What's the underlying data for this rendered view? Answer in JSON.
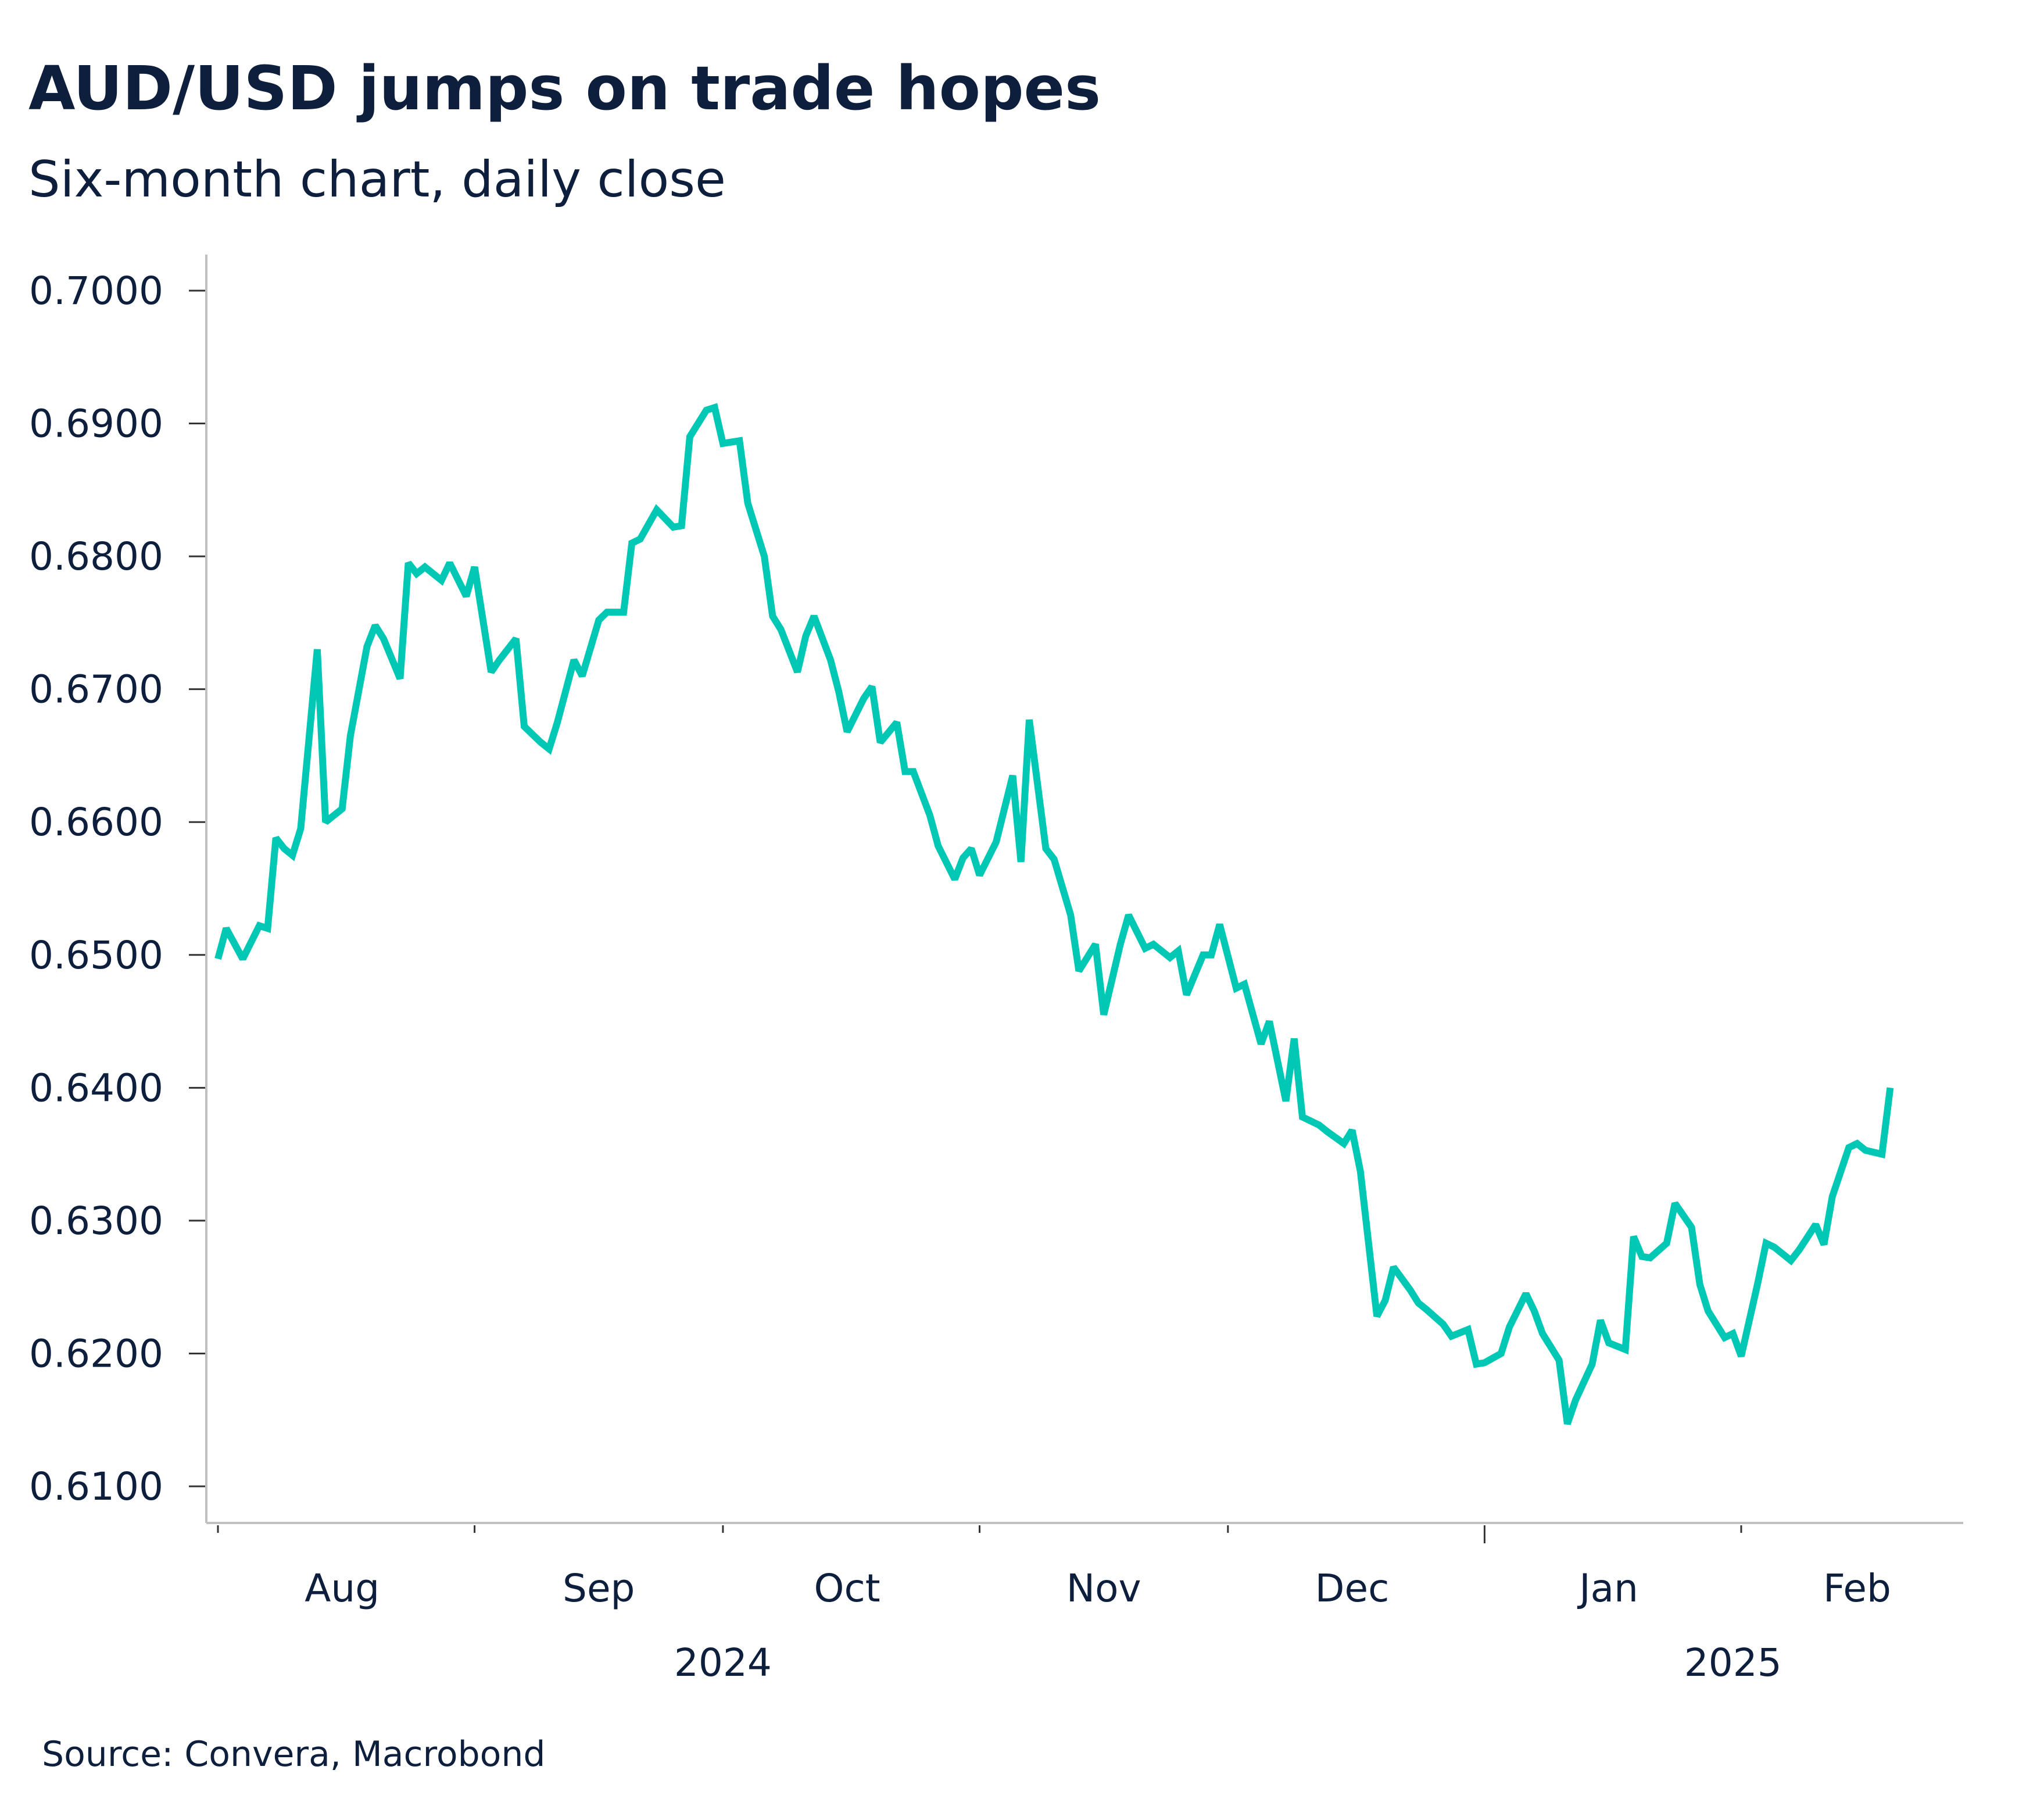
{
  "title": "AUD/USD jumps on trade hopes",
  "subtitle": "Six-month chart, daily close",
  "source": "Source: Convera, Macrobond",
  "colors": {
    "line": "#00c8b4",
    "text": "#0d1f3c",
    "axis": "#c0c0c0"
  },
  "chart_data": {
    "type": "line",
    "title": "AUD/USD jumps on trade hopes",
    "subtitle": "Six-month chart, daily close",
    "ylim": [
      0.61,
      0.7
    ],
    "xlim": [
      "2024-08-01",
      "2025-02-19"
    ],
    "y_ticks": [
      "0.7000",
      "0.6900",
      "0.6800",
      "0.6700",
      "0.6600",
      "0.6500",
      "0.6400",
      "0.6300",
      "0.6200",
      "0.6100"
    ],
    "x_month_labels": [
      {
        "label": "Aug",
        "date": "2024-08-16"
      },
      {
        "label": "Sep",
        "date": "2024-09-16"
      },
      {
        "label": "Oct",
        "date": "2024-10-16"
      },
      {
        "label": "Nov",
        "date": "2024-11-16"
      },
      {
        "label": "Dec",
        "date": "2024-12-16"
      },
      {
        "label": "Jan",
        "date": "2025-01-16"
      },
      {
        "label": "Feb",
        "date": "2025-02-15"
      }
    ],
    "x_month_ticks": [
      "2024-08-01",
      "2024-09-01",
      "2024-10-01",
      "2024-11-01",
      "2024-12-01",
      "2025-01-01",
      "2025-02-01"
    ],
    "x_year_labels": [
      {
        "label": "2024",
        "date": "2024-10-01"
      },
      {
        "label": "2025",
        "date": "2025-01-31"
      }
    ],
    "grid": false,
    "legend": "none",
    "series": [
      {
        "points": [
          [
            "2024-08-01",
            0.6497
          ],
          [
            "2024-08-02",
            0.652
          ],
          [
            "2024-08-04",
            0.6497
          ],
          [
            "2024-08-06",
            0.6522
          ],
          [
            "2024-08-07",
            0.652
          ],
          [
            "2024-08-08",
            0.6588
          ],
          [
            "2024-08-09",
            0.658
          ],
          [
            "2024-08-10",
            0.6575
          ],
          [
            "2024-08-11",
            0.6595
          ],
          [
            "2024-08-13",
            0.673
          ],
          [
            "2024-08-14",
            0.66
          ],
          [
            "2024-08-16",
            0.661
          ],
          [
            "2024-08-17",
            0.6665
          ],
          [
            "2024-08-19",
            0.6732
          ],
          [
            "2024-08-20",
            0.6748
          ],
          [
            "2024-08-21",
            0.6738
          ],
          [
            "2024-08-23",
            0.6708
          ],
          [
            "2024-08-24",
            0.6795
          ],
          [
            "2024-08-25",
            0.6787
          ],
          [
            "2024-08-26",
            0.6792
          ],
          [
            "2024-08-28",
            0.6782
          ],
          [
            "2024-08-29",
            0.6795
          ],
          [
            "2024-08-31",
            0.677
          ],
          [
            "2024-09-01",
            0.6792
          ],
          [
            "2024-09-03",
            0.6713
          ],
          [
            "2024-09-04",
            0.6722
          ],
          [
            "2024-09-06",
            0.6738
          ],
          [
            "2024-09-07",
            0.6672
          ],
          [
            "2024-09-09",
            0.666
          ],
          [
            "2024-09-10",
            0.6655
          ],
          [
            "2024-09-11",
            0.6675
          ],
          [
            "2024-09-13",
            0.6722
          ],
          [
            "2024-09-14",
            0.671
          ],
          [
            "2024-09-16",
            0.6752
          ],
          [
            "2024-09-17",
            0.6758
          ],
          [
            "2024-09-19",
            0.6758
          ],
          [
            "2024-09-20",
            0.681
          ],
          [
            "2024-09-21",
            0.6813
          ],
          [
            "2024-09-23",
            0.6835
          ],
          [
            "2024-09-25",
            0.6822
          ],
          [
            "2024-09-26",
            0.6823
          ],
          [
            "2024-09-27",
            0.689
          ],
          [
            "2024-09-29",
            0.691
          ],
          [
            "2024-09-30",
            0.6912
          ],
          [
            "2024-10-01",
            0.6885
          ],
          [
            "2024-10-03",
            0.6887
          ],
          [
            "2024-10-04",
            0.684
          ],
          [
            "2024-10-06",
            0.68
          ],
          [
            "2024-10-07",
            0.6755
          ],
          [
            "2024-10-08",
            0.6745
          ],
          [
            "2024-10-10",
            0.6713
          ],
          [
            "2024-10-11",
            0.674
          ],
          [
            "2024-10-12",
            0.6755
          ],
          [
            "2024-10-14",
            0.6722
          ],
          [
            "2024-10-15",
            0.6698
          ],
          [
            "2024-10-16",
            0.6668
          ],
          [
            "2024-10-18",
            0.6693
          ],
          [
            "2024-10-19",
            0.6702
          ],
          [
            "2024-10-20",
            0.666
          ],
          [
            "2024-10-22",
            0.6675
          ],
          [
            "2024-10-23",
            0.6638
          ],
          [
            "2024-10-24",
            0.6638
          ],
          [
            "2024-10-26",
            0.6605
          ],
          [
            "2024-10-27",
            0.6582
          ],
          [
            "2024-10-29",
            0.6557
          ],
          [
            "2024-10-30",
            0.6573
          ],
          [
            "2024-10-31",
            0.658
          ],
          [
            "2024-11-01",
            0.656
          ],
          [
            "2024-11-03",
            0.6585
          ],
          [
            "2024-11-05",
            0.6635
          ],
          [
            "2024-11-06",
            0.657
          ],
          [
            "2024-11-07",
            0.6677
          ],
          [
            "2024-11-09",
            0.658
          ],
          [
            "2024-11-10",
            0.6572
          ],
          [
            "2024-11-12",
            0.653
          ],
          [
            "2024-11-13",
            0.6488
          ],
          [
            "2024-11-15",
            0.6508
          ],
          [
            "2024-11-16",
            0.6455
          ],
          [
            "2024-11-18",
            0.6508
          ],
          [
            "2024-11-19",
            0.653
          ],
          [
            "2024-11-21",
            0.6505
          ],
          [
            "2024-11-22",
            0.6508
          ],
          [
            "2024-11-24",
            0.6498
          ],
          [
            "2024-11-25",
            0.6503
          ],
          [
            "2024-11-26",
            0.647
          ],
          [
            "2024-11-28",
            0.65
          ],
          [
            "2024-11-29",
            0.65
          ],
          [
            "2024-11-30",
            0.6523
          ],
          [
            "2024-12-02",
            0.6475
          ],
          [
            "2024-12-03",
            0.6478
          ],
          [
            "2024-12-05",
            0.6433
          ],
          [
            "2024-12-06",
            0.645
          ],
          [
            "2024-12-08",
            0.639
          ],
          [
            "2024-12-09",
            0.6437
          ],
          [
            "2024-12-10",
            0.6378
          ],
          [
            "2024-12-12",
            0.6372
          ],
          [
            "2024-12-13",
            0.6367
          ],
          [
            "2024-12-15",
            0.6358
          ],
          [
            "2024-12-16",
            0.6368
          ],
          [
            "2024-12-17",
            0.6337
          ],
          [
            "2024-12-19",
            0.6228
          ],
          [
            "2024-12-20",
            0.624
          ],
          [
            "2024-12-21",
            0.6265
          ],
          [
            "2024-12-23",
            0.6248
          ],
          [
            "2024-12-24",
            0.6238
          ],
          [
            "2024-12-25",
            0.6233
          ],
          [
            "2024-12-27",
            0.6222
          ],
          [
            "2024-12-28",
            0.6213
          ],
          [
            "2024-12-30",
            0.6218
          ],
          [
            "2024-12-31",
            0.6192
          ],
          [
            "2025-01-01",
            0.6193
          ],
          [
            "2025-01-03",
            0.62
          ],
          [
            "2025-01-04",
            0.622
          ],
          [
            "2025-01-06",
            0.6245
          ],
          [
            "2025-01-07",
            0.6232
          ],
          [
            "2025-01-08",
            0.6215
          ],
          [
            "2025-01-10",
            0.6195
          ],
          [
            "2025-01-11",
            0.6147
          ],
          [
            "2025-01-12",
            0.6165
          ],
          [
            "2025-01-14",
            0.6192
          ],
          [
            "2025-01-15",
            0.6225
          ],
          [
            "2025-01-16",
            0.6208
          ],
          [
            "2025-01-18",
            0.6203
          ],
          [
            "2025-01-19",
            0.6288
          ],
          [
            "2025-01-20",
            0.6273
          ],
          [
            "2025-01-21",
            0.6272
          ],
          [
            "2025-01-23",
            0.6283
          ],
          [
            "2025-01-24",
            0.6313
          ],
          [
            "2025-01-26",
            0.6295
          ],
          [
            "2025-01-27",
            0.6252
          ],
          [
            "2025-01-28",
            0.6232
          ],
          [
            "2025-01-30",
            0.6212
          ],
          [
            "2025-01-31",
            0.6215
          ],
          [
            "2025-02-01",
            0.6198
          ],
          [
            "2025-02-03",
            0.6253
          ],
          [
            "2025-02-04",
            0.6283
          ],
          [
            "2025-02-05",
            0.628
          ],
          [
            "2025-02-07",
            0.627
          ],
          [
            "2025-02-08",
            0.6278
          ],
          [
            "2025-02-10",
            0.6297
          ],
          [
            "2025-02-11",
            0.6282
          ],
          [
            "2025-02-12",
            0.6318
          ],
          [
            "2025-02-14",
            0.6355
          ],
          [
            "2025-02-15",
            0.6358
          ],
          [
            "2025-02-16",
            0.6353
          ],
          [
            "2025-02-18",
            0.635
          ],
          [
            "2025-02-19",
            0.64
          ]
        ]
      }
    ]
  }
}
